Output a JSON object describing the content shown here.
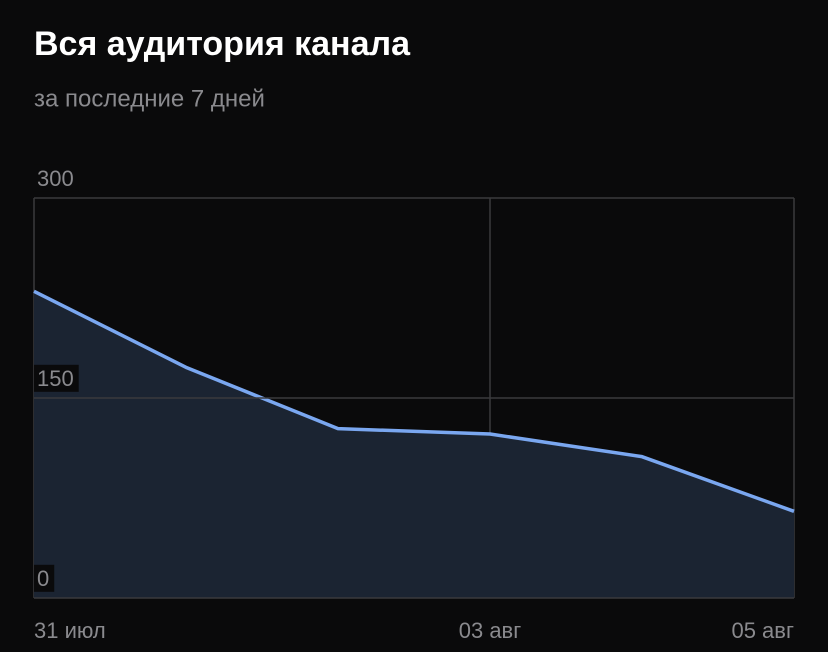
{
  "chart_data": {
    "type": "area",
    "title": "Вся аудитория канала",
    "subtitle": "за последние 7 дней",
    "categories": [
      "31 июл",
      null,
      null,
      "03 авг",
      null,
      "05 авг"
    ],
    "values": [
      230,
      173,
      127,
      123,
      106,
      65
    ],
    "color": "#7aa7f0",
    "fill": "#1b2432",
    "ylim": [
      0,
      300
    ],
    "yticks": [
      0,
      150,
      300
    ],
    "grid": true
  }
}
